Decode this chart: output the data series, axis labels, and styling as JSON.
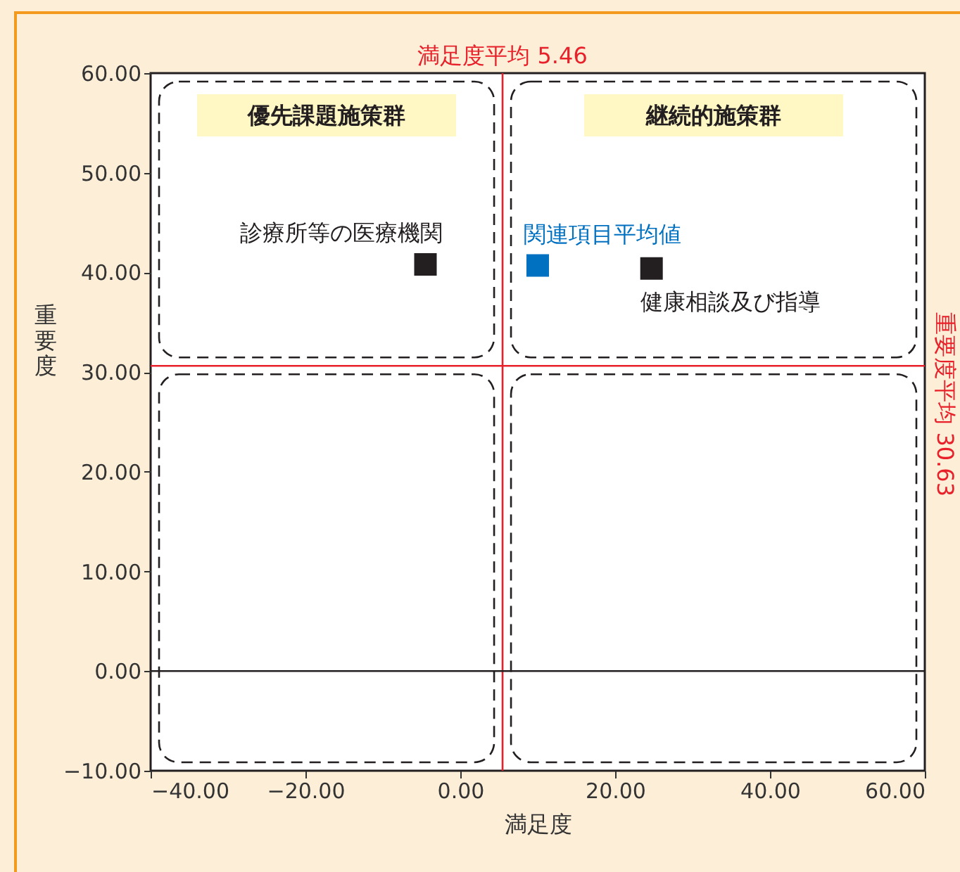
{
  "chart_data": {
    "type": "scatter",
    "xlabel": "満足度",
    "ylabel": "重要度",
    "xlim": [
      -40,
      60
    ],
    "xticks": [
      {
        "value": -40,
        "label": "−40.00"
      },
      {
        "value": -20,
        "label": "−20.00"
      },
      {
        "value": 0,
        "label": "0.00"
      },
      {
        "value": 20,
        "label": "20.00"
      },
      {
        "value": 40,
        "label": "40.00"
      },
      {
        "value": 60,
        "label": "60.00"
      }
    ],
    "ylim": [
      -10,
      60
    ],
    "yticks": [
      {
        "value": -10,
        "label": "−10.00"
      },
      {
        "value": 0,
        "label": "0.00"
      },
      {
        "value": 10,
        "label": "10.00"
      },
      {
        "value": 20,
        "label": "20.00"
      },
      {
        "value": 30,
        "label": "30.00"
      },
      {
        "value": 40,
        "label": "40.00"
      },
      {
        "value": 50,
        "label": "50.00"
      },
      {
        "value": 60,
        "label": "60.00"
      }
    ],
    "marker": "square",
    "grid": false,
    "series": [
      {
        "name": "診療所等の医療機関",
        "color": "#231f20",
        "x": [
          -4.5
        ],
        "values": [
          40.8
        ]
      },
      {
        "name": "関連項目平均値",
        "color": "#0070c0",
        "x": [
          10
        ],
        "values": [
          40.7
        ]
      },
      {
        "name": "健康相談及び指導",
        "color": "#231f20",
        "x": [
          24.7
        ],
        "values": [
          40.4
        ]
      }
    ],
    "ref_lines": [
      {
        "axis": "x",
        "value": 5.46,
        "label": "満足度平均 5.46",
        "color": "#e8202a"
      },
      {
        "axis": "y",
        "value": 30.63,
        "label": "重要度平均 30.63",
        "color": "#e8202a"
      },
      {
        "axis": "y",
        "value": 0,
        "color": "#231f20"
      }
    ],
    "annotations": [
      "優先課題施策群",
      "継続的施策群"
    ]
  }
}
